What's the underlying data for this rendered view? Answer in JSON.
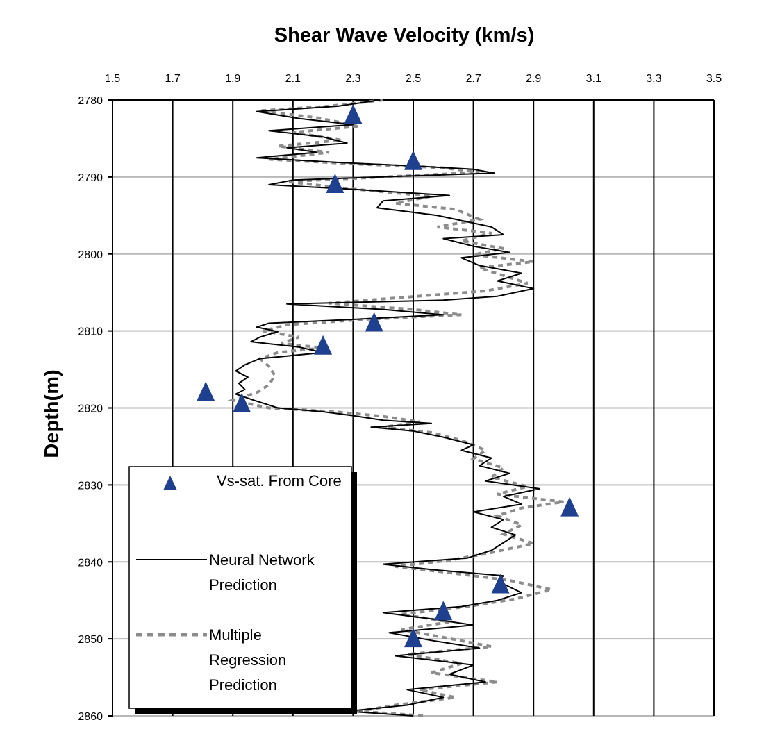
{
  "chart_data": {
    "type": "scatter",
    "title": "Shear Wave Velocity (km/s)",
    "xlabel": "Shear Wave Velocity (km/s)",
    "ylabel": "Depth(m)",
    "xlim": [
      1.5,
      3.5
    ],
    "ylim": [
      2780,
      2860
    ],
    "y_inverted": true,
    "x_axis_position": "top",
    "xticks": [
      "1.5",
      "1.7",
      "1.9",
      "2.1",
      "2.3",
      "2.5",
      "2.7",
      "2.9",
      "3.1",
      "3.3",
      "3.5"
    ],
    "yticks": [
      "2780",
      "2790",
      "2800",
      "2810",
      "2820",
      "2830",
      "2840",
      "2850",
      "2860"
    ],
    "grid": "vertical gridlines black, horizontal gridlines gray",
    "legend_position": "bottom-left",
    "colors": {
      "core": "#1f3f8f",
      "neural": "#000000",
      "regression": "#8c8c8c"
    },
    "series": [
      {
        "name": "Vs-sat. From Core",
        "marker": "triangle",
        "points": [
          {
            "x": 2.3,
            "y": 2782
          },
          {
            "x": 2.5,
            "y": 2788
          },
          {
            "x": 2.24,
            "y": 2791
          },
          {
            "x": 2.37,
            "y": 2809
          },
          {
            "x": 2.2,
            "y": 2812
          },
          {
            "x": 1.81,
            "y": 2818
          },
          {
            "x": 1.93,
            "y": 2819.5
          },
          {
            "x": 3.02,
            "y": 2833
          },
          {
            "x": 2.79,
            "y": 2843
          },
          {
            "x": 2.6,
            "y": 2846.5
          },
          {
            "x": 2.5,
            "y": 2850
          }
        ]
      },
      {
        "name": "Neural Network Prediction",
        "line": "solid",
        "points": [
          {
            "x": 2.39,
            "y": 2780
          },
          {
            "x": 2.25,
            "y": 2780.8
          },
          {
            "x": 1.98,
            "y": 2781.5
          },
          {
            "x": 2.12,
            "y": 2782.4
          },
          {
            "x": 2.3,
            "y": 2783.2
          },
          {
            "x": 2.02,
            "y": 2784
          },
          {
            "x": 2.2,
            "y": 2784.8
          },
          {
            "x": 2.28,
            "y": 2785.6
          },
          {
            "x": 2.08,
            "y": 2786.2
          },
          {
            "x": 2.18,
            "y": 2786.8
          },
          {
            "x": 1.98,
            "y": 2787.5
          },
          {
            "x": 2.24,
            "y": 2788.1
          },
          {
            "x": 2.52,
            "y": 2788.6
          },
          {
            "x": 2.7,
            "y": 2789
          },
          {
            "x": 2.77,
            "y": 2789.5
          },
          {
            "x": 2.46,
            "y": 2789.9
          },
          {
            "x": 2.1,
            "y": 2790.4
          },
          {
            "x": 2.02,
            "y": 2791
          },
          {
            "x": 2.3,
            "y": 2791.6
          },
          {
            "x": 2.62,
            "y": 2792.4
          },
          {
            "x": 2.4,
            "y": 2793.1
          },
          {
            "x": 2.38,
            "y": 2794
          },
          {
            "x": 2.58,
            "y": 2795
          },
          {
            "x": 2.76,
            "y": 2796.5
          },
          {
            "x": 2.8,
            "y": 2797.5
          },
          {
            "x": 2.6,
            "y": 2798
          },
          {
            "x": 2.7,
            "y": 2799
          },
          {
            "x": 2.82,
            "y": 2799.8
          },
          {
            "x": 2.66,
            "y": 2800.5
          },
          {
            "x": 2.72,
            "y": 2801.5
          },
          {
            "x": 2.86,
            "y": 2802.5
          },
          {
            "x": 2.78,
            "y": 2803.5
          },
          {
            "x": 2.9,
            "y": 2804.5
          },
          {
            "x": 2.78,
            "y": 2805.5
          },
          {
            "x": 2.6,
            "y": 2806
          },
          {
            "x": 2.08,
            "y": 2806.5
          },
          {
            "x": 2.4,
            "y": 2807.2
          },
          {
            "x": 2.6,
            "y": 2807.9
          },
          {
            "x": 2.3,
            "y": 2808.5
          },
          {
            "x": 2.02,
            "y": 2809
          },
          {
            "x": 1.98,
            "y": 2809.5
          },
          {
            "x": 2.05,
            "y": 2810.1
          },
          {
            "x": 1.99,
            "y": 2810.8
          },
          {
            "x": 1.96,
            "y": 2811.4
          },
          {
            "x": 2.12,
            "y": 2812.1
          },
          {
            "x": 2.2,
            "y": 2812.8
          },
          {
            "x": 1.99,
            "y": 2813.6
          },
          {
            "x": 1.94,
            "y": 2814.4
          },
          {
            "x": 1.91,
            "y": 2815.2
          },
          {
            "x": 1.95,
            "y": 2816
          },
          {
            "x": 1.92,
            "y": 2816.8
          },
          {
            "x": 1.94,
            "y": 2817.6
          },
          {
            "x": 1.91,
            "y": 2818.2
          },
          {
            "x": 1.97,
            "y": 2819
          },
          {
            "x": 2.05,
            "y": 2820
          },
          {
            "x": 2.2,
            "y": 2820.5
          },
          {
            "x": 2.3,
            "y": 2821
          },
          {
            "x": 2.4,
            "y": 2821.6
          },
          {
            "x": 2.56,
            "y": 2822
          },
          {
            "x": 2.36,
            "y": 2822.5
          },
          {
            "x": 2.5,
            "y": 2823
          },
          {
            "x": 2.6,
            "y": 2823.8
          },
          {
            "x": 2.7,
            "y": 2824.8
          },
          {
            "x": 2.66,
            "y": 2825.5
          },
          {
            "x": 2.76,
            "y": 2826.5
          },
          {
            "x": 2.72,
            "y": 2827.5
          },
          {
            "x": 2.82,
            "y": 2828.5
          },
          {
            "x": 2.74,
            "y": 2829.5
          },
          {
            "x": 2.92,
            "y": 2830.5
          },
          {
            "x": 2.8,
            "y": 2831.5
          },
          {
            "x": 2.86,
            "y": 2832.5
          },
          {
            "x": 2.7,
            "y": 2833.5
          },
          {
            "x": 2.8,
            "y": 2834.5
          },
          {
            "x": 2.76,
            "y": 2835.5
          },
          {
            "x": 2.84,
            "y": 2836.5
          },
          {
            "x": 2.8,
            "y": 2837.5
          },
          {
            "x": 2.76,
            "y": 2838.5
          },
          {
            "x": 2.68,
            "y": 2839.5
          },
          {
            "x": 2.4,
            "y": 2840.3
          },
          {
            "x": 2.56,
            "y": 2841
          },
          {
            "x": 2.8,
            "y": 2841.8
          },
          {
            "x": 2.78,
            "y": 2842.5
          },
          {
            "x": 2.86,
            "y": 2844
          },
          {
            "x": 2.78,
            "y": 2845
          },
          {
            "x": 2.66,
            "y": 2845.8
          },
          {
            "x": 2.4,
            "y": 2846.6
          },
          {
            "x": 2.56,
            "y": 2847.4
          },
          {
            "x": 2.7,
            "y": 2848.2
          },
          {
            "x": 2.42,
            "y": 2849.2
          },
          {
            "x": 2.56,
            "y": 2850.2
          },
          {
            "x": 2.72,
            "y": 2851.2
          },
          {
            "x": 2.44,
            "y": 2852.2
          },
          {
            "x": 2.7,
            "y": 2853.4
          },
          {
            "x": 2.62,
            "y": 2854.6
          },
          {
            "x": 2.74,
            "y": 2855.6
          },
          {
            "x": 2.48,
            "y": 2856.6
          },
          {
            "x": 2.6,
            "y": 2857.6
          },
          {
            "x": 2.48,
            "y": 2858.6
          },
          {
            "x": 2.28,
            "y": 2859.4
          },
          {
            "x": 2.5,
            "y": 2860
          }
        ]
      },
      {
        "name": "Multiple Regression Prediction",
        "line": "dashed",
        "points": [
          {
            "x": 2.4,
            "y": 2780
          },
          {
            "x": 2.22,
            "y": 2780.8
          },
          {
            "x": 1.99,
            "y": 2781.4
          },
          {
            "x": 2.18,
            "y": 2782.3
          },
          {
            "x": 2.32,
            "y": 2783.4
          },
          {
            "x": 2.1,
            "y": 2784.2
          },
          {
            "x": 2.26,
            "y": 2785.2
          },
          {
            "x": 2.05,
            "y": 2786
          },
          {
            "x": 2.22,
            "y": 2786.8
          },
          {
            "x": 2.02,
            "y": 2787.7
          },
          {
            "x": 2.3,
            "y": 2788.3
          },
          {
            "x": 2.6,
            "y": 2788.8
          },
          {
            "x": 2.72,
            "y": 2789.4
          },
          {
            "x": 2.4,
            "y": 2790
          },
          {
            "x": 2.08,
            "y": 2790.6
          },
          {
            "x": 2.28,
            "y": 2791.5
          },
          {
            "x": 2.56,
            "y": 2792.5
          },
          {
            "x": 2.44,
            "y": 2793.4
          },
          {
            "x": 2.64,
            "y": 2794.2
          },
          {
            "x": 2.72,
            "y": 2795.5
          },
          {
            "x": 2.58,
            "y": 2796.5
          },
          {
            "x": 2.76,
            "y": 2797.3
          },
          {
            "x": 2.66,
            "y": 2798.3
          },
          {
            "x": 2.8,
            "y": 2799.3
          },
          {
            "x": 2.7,
            "y": 2800.1
          },
          {
            "x": 2.9,
            "y": 2801
          },
          {
            "x": 2.72,
            "y": 2801.8
          },
          {
            "x": 2.8,
            "y": 2802.8
          },
          {
            "x": 2.88,
            "y": 2803.8
          },
          {
            "x": 2.74,
            "y": 2804.8
          },
          {
            "x": 2.48,
            "y": 2805.6
          },
          {
            "x": 2.22,
            "y": 2806.4
          },
          {
            "x": 2.5,
            "y": 2807.2
          },
          {
            "x": 2.66,
            "y": 2807.9
          },
          {
            "x": 2.34,
            "y": 2808.5
          },
          {
            "x": 2.08,
            "y": 2809.2
          },
          {
            "x": 2.0,
            "y": 2810
          },
          {
            "x": 2.12,
            "y": 2810.8
          },
          {
            "x": 2.06,
            "y": 2811.6
          },
          {
            "x": 2.2,
            "y": 2812.2
          },
          {
            "x": 2.05,
            "y": 2812.8
          },
          {
            "x": 1.99,
            "y": 2813.6
          },
          {
            "x": 2.02,
            "y": 2814.6
          },
          {
            "x": 2.04,
            "y": 2815.8
          },
          {
            "x": 2.02,
            "y": 2817
          },
          {
            "x": 1.98,
            "y": 2818
          },
          {
            "x": 1.9,
            "y": 2819
          },
          {
            "x": 2.02,
            "y": 2820
          },
          {
            "x": 2.24,
            "y": 2820.5
          },
          {
            "x": 2.4,
            "y": 2821.1
          },
          {
            "x": 2.52,
            "y": 2821.8
          },
          {
            "x": 2.4,
            "y": 2822.5
          },
          {
            "x": 2.56,
            "y": 2823.2
          },
          {
            "x": 2.66,
            "y": 2824.2
          },
          {
            "x": 2.74,
            "y": 2825.5
          },
          {
            "x": 2.7,
            "y": 2826.6
          },
          {
            "x": 2.8,
            "y": 2827.8
          },
          {
            "x": 2.76,
            "y": 2829
          },
          {
            "x": 2.88,
            "y": 2830.2
          },
          {
            "x": 2.78,
            "y": 2831.2
          },
          {
            "x": 3.0,
            "y": 2832.2
          },
          {
            "x": 2.86,
            "y": 2833
          },
          {
            "x": 2.78,
            "y": 2834
          },
          {
            "x": 2.86,
            "y": 2835.2
          },
          {
            "x": 2.8,
            "y": 2836.4
          },
          {
            "x": 2.9,
            "y": 2837.6
          },
          {
            "x": 2.76,
            "y": 2838.8
          },
          {
            "x": 2.62,
            "y": 2839.8
          },
          {
            "x": 2.44,
            "y": 2840.6
          },
          {
            "x": 2.62,
            "y": 2841.4
          },
          {
            "x": 2.82,
            "y": 2842.4
          },
          {
            "x": 2.96,
            "y": 2843.6
          },
          {
            "x": 2.84,
            "y": 2844.8
          },
          {
            "x": 2.68,
            "y": 2845.8
          },
          {
            "x": 2.46,
            "y": 2846.8
          },
          {
            "x": 2.62,
            "y": 2847.8
          },
          {
            "x": 2.46,
            "y": 2848.8
          },
          {
            "x": 2.6,
            "y": 2849.8
          },
          {
            "x": 2.76,
            "y": 2851
          },
          {
            "x": 2.48,
            "y": 2852
          },
          {
            "x": 2.66,
            "y": 2853.2
          },
          {
            "x": 2.56,
            "y": 2854.4
          },
          {
            "x": 2.78,
            "y": 2855.6
          },
          {
            "x": 2.52,
            "y": 2856.6
          },
          {
            "x": 2.64,
            "y": 2857.6
          },
          {
            "x": 2.44,
            "y": 2858.6
          },
          {
            "x": 2.32,
            "y": 2859.4
          },
          {
            "x": 2.54,
            "y": 2860
          }
        ]
      }
    ],
    "legend": {
      "core": "Vs-sat. From Core",
      "neural": [
        "Neural Network",
        "Prediction"
      ],
      "regression": [
        "Multiple",
        "Regression",
        "Prediction"
      ]
    }
  }
}
